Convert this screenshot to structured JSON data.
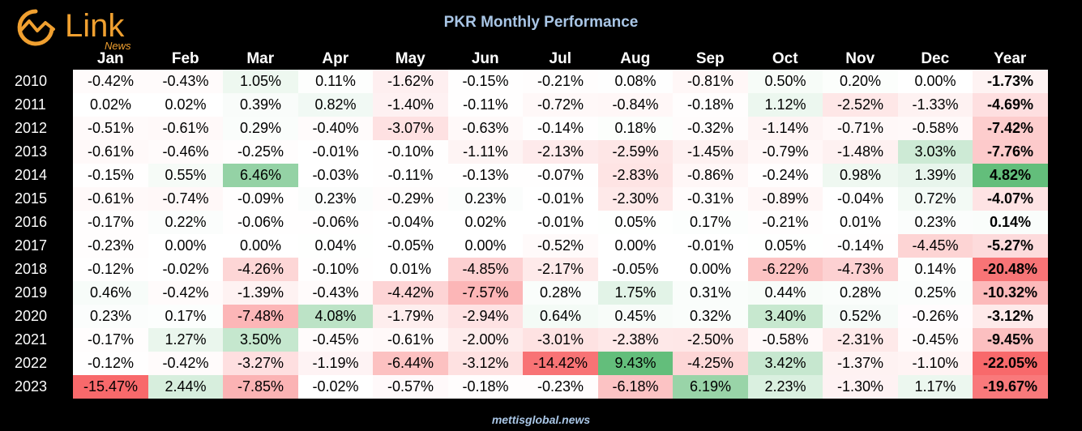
{
  "branding": {
    "logo_text": "Link",
    "logo_sub": "News",
    "footer": "mettisglobal.news"
  },
  "chart_data": {
    "type": "heatmap",
    "title": "PKR Monthly Performance",
    "columns": [
      "Jan",
      "Feb",
      "Mar",
      "Apr",
      "May",
      "Jun",
      "Jul",
      "Aug",
      "Sep",
      "Oct",
      "Nov",
      "Dec",
      "Year"
    ],
    "rows": [
      {
        "label": "2010",
        "values": [
          "-0.42%",
          "-0.43%",
          "1.05%",
          "0.11%",
          "-1.62%",
          "-0.15%",
          "-0.21%",
          "0.08%",
          "-0.81%",
          "0.50%",
          "0.20%",
          "0.00%",
          "-1.73%"
        ]
      },
      {
        "label": "2011",
        "values": [
          "0.02%",
          "0.02%",
          "0.39%",
          "0.82%",
          "-1.40%",
          "-0.11%",
          "-0.72%",
          "-0.84%",
          "-0.18%",
          "1.12%",
          "-2.52%",
          "-1.33%",
          "-4.69%"
        ]
      },
      {
        "label": "2012",
        "values": [
          "-0.51%",
          "-0.61%",
          "0.29%",
          "-0.40%",
          "-3.07%",
          "-0.63%",
          "-0.14%",
          "0.18%",
          "-0.32%",
          "-1.14%",
          "-0.71%",
          "-0.58%",
          "-7.42%"
        ]
      },
      {
        "label": "2013",
        "values": [
          "-0.61%",
          "-0.46%",
          "-0.25%",
          "-0.01%",
          "-0.10%",
          "-1.11%",
          "-2.13%",
          "-2.59%",
          "-1.45%",
          "-0.79%",
          "-1.48%",
          "3.03%",
          "-7.76%"
        ]
      },
      {
        "label": "2014",
        "values": [
          "-0.15%",
          "0.55%",
          "6.46%",
          "-0.03%",
          "-0.11%",
          "-0.13%",
          "-0.07%",
          "-2.83%",
          "-0.86%",
          "-0.24%",
          "0.98%",
          "1.39%",
          "4.82%"
        ]
      },
      {
        "label": "2015",
        "values": [
          "-0.61%",
          "-0.74%",
          "-0.09%",
          "0.23%",
          "-0.29%",
          "0.23%",
          "-0.01%",
          "-2.30%",
          "-0.31%",
          "-0.89%",
          "-0.04%",
          "0.72%",
          "-4.07%"
        ]
      },
      {
        "label": "2016",
        "values": [
          "-0.17%",
          "0.22%",
          "-0.06%",
          "-0.06%",
          "-0.04%",
          "0.02%",
          "-0.01%",
          "0.05%",
          "0.17%",
          "-0.21%",
          "0.01%",
          "0.23%",
          "0.14%"
        ]
      },
      {
        "label": "2017",
        "values": [
          "-0.23%",
          "0.00%",
          "0.00%",
          "0.04%",
          "-0.05%",
          "0.00%",
          "-0.52%",
          "0.00%",
          "-0.01%",
          "0.05%",
          "-0.14%",
          "-4.45%",
          "-5.27%"
        ]
      },
      {
        "label": "2018",
        "values": [
          "-0.12%",
          "-0.02%",
          "-4.26%",
          "-0.10%",
          "0.01%",
          "-4.85%",
          "-2.17%",
          "-0.05%",
          "0.00%",
          "-6.22%",
          "-4.73%",
          "0.14%",
          "-20.48%"
        ]
      },
      {
        "label": "2019",
        "values": [
          "0.46%",
          "-0.42%",
          "-1.39%",
          "-0.43%",
          "-4.42%",
          "-7.57%",
          "0.28%",
          "1.75%",
          "0.31%",
          "0.44%",
          "0.28%",
          "0.25%",
          "-10.32%"
        ]
      },
      {
        "label": "2020",
        "values": [
          "0.23%",
          "0.17%",
          "-7.48%",
          "4.08%",
          "-1.79%",
          "-2.94%",
          "0.64%",
          "0.45%",
          "0.32%",
          "3.40%",
          "0.52%",
          "-0.26%",
          "-3.12%"
        ]
      },
      {
        "label": "2021",
        "values": [
          "-0.17%",
          "1.27%",
          "3.50%",
          "-0.45%",
          "-0.61%",
          "-2.00%",
          "-3.01%",
          "-2.38%",
          "-2.50%",
          "-0.58%",
          "-2.31%",
          "-0.45%",
          "-9.45%"
        ]
      },
      {
        "label": "2022",
        "values": [
          "-0.12%",
          "-0.42%",
          "-3.27%",
          "-1.19%",
          "-6.44%",
          "-3.12%",
          "-14.42%",
          "9.43%",
          "-4.25%",
          "3.42%",
          "-1.37%",
          "-1.10%",
          "-22.05%"
        ]
      },
      {
        "label": "2023",
        "values": [
          "-15.47%",
          "2.44%",
          "-7.85%",
          "-0.02%",
          "-0.57%",
          "-0.18%",
          "-0.23%",
          "-6.18%",
          "6.19%",
          "2.23%",
          "-1.30%",
          "1.17%",
          "-19.67%"
        ]
      }
    ],
    "colors": {
      "negative": "#F8696B",
      "positive": "#63BE7B",
      "neutral": "#FFFFFF"
    }
  }
}
